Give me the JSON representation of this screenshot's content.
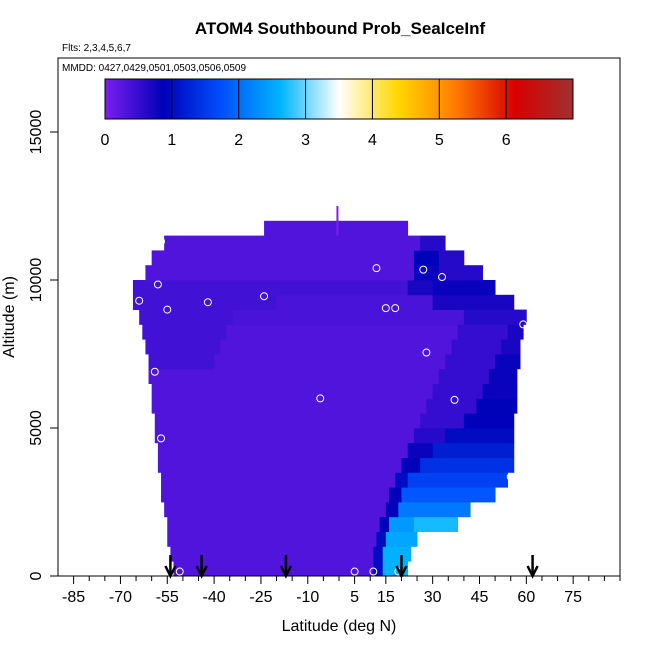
{
  "chart_data": {
    "type": "heatmap",
    "title": "ATOM4 Southbound Prob_SeaIceInf",
    "flights_note": "Flts: 2,3,4,5,6,7",
    "dates_note": "MMDD: 0427,0429,0501,0503,0506,0509",
    "xlabel": "Latitude (deg N)",
    "ylabel": "Altitude (m)",
    "xlim": [
      -90,
      90
    ],
    "ylim": [
      0,
      17500
    ],
    "x_ticks": [
      -85,
      -70,
      -55,
      -40,
      -25,
      -10,
      5,
      15,
      30,
      45,
      60,
      75
    ],
    "x_tick_labels": [
      "-85",
      "-70",
      "-55",
      "-40",
      "-25",
      "-10",
      "5",
      "15",
      "30",
      "45",
      "60",
      "75"
    ],
    "y_ticks": [
      0,
      5000,
      10000,
      15000
    ],
    "y_tick_labels": [
      "0",
      "5000",
      "10000",
      "15000"
    ],
    "colorbar": {
      "range": [
        0,
        7
      ],
      "ticks": [
        0,
        1,
        2,
        3,
        4,
        5,
        6
      ],
      "tick_labels": [
        "0",
        "1",
        "2",
        "3",
        "4",
        "5",
        "6"
      ],
      "colors": [
        "#7a1ff0",
        "#0000b8",
        "#0050ff",
        "#00b4ff",
        "#ffffff",
        "#ffd800",
        "#ff7a00",
        "#d80000",
        "#a03030"
      ]
    },
    "cell_height_m": 500,
    "rows": [
      {
        "alt": 0,
        "x0": -53,
        "x1": 22,
        "regions": [
          [
            -53,
            11,
            0.3
          ],
          [
            11,
            14,
            1.0
          ],
          [
            14,
            22,
            2.6
          ]
        ]
      },
      {
        "alt": 500,
        "x0": -54,
        "x1": 23,
        "regions": [
          [
            -54,
            11,
            0.3
          ],
          [
            11,
            14,
            1.0
          ],
          [
            14,
            23,
            2.6
          ]
        ]
      },
      {
        "alt": 1000,
        "x0": -55,
        "x1": 25,
        "regions": [
          [
            -55,
            12,
            0.3
          ],
          [
            12,
            15,
            1.0
          ],
          [
            15,
            25,
            2.5
          ]
        ]
      },
      {
        "alt": 1500,
        "x0": -55,
        "x1": 38,
        "regions": [
          [
            -55,
            13,
            0.3
          ],
          [
            13,
            16,
            0.9
          ],
          [
            16,
            24,
            2.4
          ],
          [
            24,
            38,
            2.7
          ]
        ]
      },
      {
        "alt": 2000,
        "x0": -56,
        "x1": 42,
        "regions": [
          [
            -56,
            15,
            0.3
          ],
          [
            15,
            19,
            0.9
          ],
          [
            19,
            42,
            2.1
          ]
        ]
      },
      {
        "alt": 2500,
        "x0": -57,
        "x1": 50,
        "regions": [
          [
            -57,
            16,
            0.3
          ],
          [
            16,
            20,
            0.9
          ],
          [
            20,
            50,
            1.8
          ]
        ]
      },
      {
        "alt": 3000,
        "x0": -57,
        "x1": 54,
        "regions": [
          [
            -57,
            18,
            0.3
          ],
          [
            18,
            22,
            1.0
          ],
          [
            22,
            54,
            1.6
          ]
        ]
      },
      {
        "alt": 3500,
        "x0": -58,
        "x1": 56,
        "regions": [
          [
            -58,
            20,
            0.3
          ],
          [
            20,
            26,
            0.9
          ],
          [
            26,
            56,
            1.4
          ]
        ]
      },
      {
        "alt": 4000,
        "x0": -58,
        "x1": 56,
        "regions": [
          [
            -58,
            22,
            0.3
          ],
          [
            22,
            30,
            0.8
          ],
          [
            30,
            56,
            1.2
          ]
        ]
      },
      {
        "alt": 4500,
        "x0": -59,
        "x1": 56,
        "regions": [
          [
            -59,
            24,
            0.3
          ],
          [
            24,
            34,
            0.6
          ],
          [
            34,
            56,
            1.0
          ]
        ]
      },
      {
        "alt": 5000,
        "x0": -59,
        "x1": 56,
        "regions": [
          [
            -59,
            26,
            0.3
          ],
          [
            26,
            40,
            0.5
          ],
          [
            40,
            56,
            0.9
          ]
        ]
      },
      {
        "alt": 5500,
        "x0": -60,
        "x1": 57,
        "regions": [
          [
            -60,
            28,
            0.3
          ],
          [
            28,
            44,
            0.5
          ],
          [
            44,
            57,
            0.9
          ]
        ]
      },
      {
        "alt": 6000,
        "x0": -60,
        "x1": 57,
        "regions": [
          [
            -60,
            30,
            0.3
          ],
          [
            30,
            46,
            0.5
          ],
          [
            46,
            57,
            0.8
          ]
        ]
      },
      {
        "alt": 6500,
        "x0": -61,
        "x1": 57,
        "regions": [
          [
            -61,
            32,
            0.3
          ],
          [
            32,
            48,
            0.5
          ],
          [
            48,
            57,
            0.8
          ]
        ]
      },
      {
        "alt": 7000,
        "x0": -61,
        "x1": 58,
        "regions": [
          [
            -61,
            -40,
            0.4
          ],
          [
            -40,
            34,
            0.3
          ],
          [
            34,
            50,
            0.5
          ],
          [
            50,
            58,
            0.8
          ]
        ]
      },
      {
        "alt": 7500,
        "x0": -62,
        "x1": 58,
        "regions": [
          [
            -62,
            -38,
            0.4
          ],
          [
            -38,
            36,
            0.3
          ],
          [
            36,
            52,
            0.5
          ],
          [
            52,
            58,
            0.7
          ]
        ]
      },
      {
        "alt": 8000,
        "x0": -63,
        "x1": 59,
        "regions": [
          [
            -63,
            -36,
            0.4
          ],
          [
            -36,
            38,
            0.3
          ],
          [
            38,
            54,
            0.5
          ],
          [
            54,
            59,
            0.7
          ]
        ]
      },
      {
        "alt": 8500,
        "x0": -64,
        "x1": 60,
        "regions": [
          [
            -64,
            -34,
            0.4
          ],
          [
            -34,
            40,
            0.35
          ],
          [
            40,
            60,
            0.6
          ]
        ]
      },
      {
        "alt": 9000,
        "x0": -66,
        "x1": 56,
        "regions": [
          [
            -66,
            -20,
            0.4
          ],
          [
            -20,
            30,
            0.35
          ],
          [
            30,
            56,
            0.7
          ]
        ]
      },
      {
        "alt": 9500,
        "x0": -66,
        "x1": 50,
        "regions": [
          [
            -66,
            -10,
            0.4
          ],
          [
            -10,
            22,
            0.4
          ],
          [
            22,
            30,
            0.7
          ],
          [
            30,
            50,
            0.8
          ]
        ]
      },
      {
        "alt": 10000,
        "x0": -62,
        "x1": 46,
        "regions": [
          [
            -62,
            24,
            0.3
          ],
          [
            24,
            32,
            0.8
          ],
          [
            32,
            46,
            0.6
          ]
        ]
      },
      {
        "alt": 10500,
        "x0": -60,
        "x1": 40,
        "regions": [
          [
            -60,
            24,
            0.3
          ],
          [
            24,
            32,
            0.9
          ],
          [
            32,
            40,
            0.6
          ]
        ]
      },
      {
        "alt": 11000,
        "x0": -56,
        "x1": 34,
        "regions": [
          [
            -56,
            26,
            0.3
          ],
          [
            26,
            34,
            0.6
          ]
        ]
      },
      {
        "alt": 11500,
        "x0": -24,
        "x1": 22,
        "regions": [
          [
            -24,
            22,
            0.3
          ]
        ]
      }
    ],
    "observations": [
      {
        "lat": -57,
        "alt": 11300
      },
      {
        "lat": -58,
        "alt": 9850
      },
      {
        "lat": -64,
        "alt": 9300
      },
      {
        "lat": -72,
        "alt": 9300
      },
      {
        "lat": -55,
        "alt": 9000
      },
      {
        "lat": -42,
        "alt": 9250
      },
      {
        "lat": -24,
        "alt": 9450
      },
      {
        "lat": 12,
        "alt": 10400
      },
      {
        "lat": 24,
        "alt": 11700
      },
      {
        "lat": 27,
        "alt": 10350
      },
      {
        "lat": 33,
        "alt": 10100
      },
      {
        "lat": 15,
        "alt": 9050
      },
      {
        "lat": 18,
        "alt": 9050
      },
      {
        "lat": 28,
        "alt": 7550
      },
      {
        "lat": 59,
        "alt": 8500
      },
      {
        "lat": -59,
        "alt": 6900
      },
      {
        "lat": -6,
        "alt": 6000
      },
      {
        "lat": 37,
        "alt": 5950
      },
      {
        "lat": -57,
        "alt": 4650
      },
      {
        "lat": 55,
        "alt": 3350
      },
      {
        "lat": 5,
        "alt": 150
      },
      {
        "lat": 11,
        "alt": 150
      },
      {
        "lat": 19,
        "alt": 150
      },
      {
        "lat": -51,
        "alt": 150
      }
    ],
    "flight_markers_lat": [
      -54,
      -44,
      -17,
      20,
      62
    ]
  }
}
